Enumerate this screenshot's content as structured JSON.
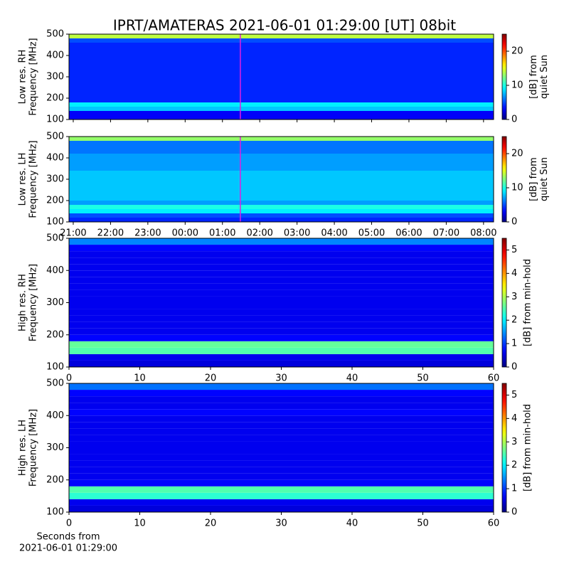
{
  "title": "IPRT/AMATERAS 2021-06-01 01:29:00 [UT]   08bit",
  "chart_data": [
    {
      "type": "heatmap",
      "ylabel": [
        "Low res. RH",
        "Frequency [MHz]"
      ],
      "colormap": "jet",
      "y_edges": [
        100,
        120,
        140,
        160,
        180,
        200,
        220,
        240,
        260,
        280,
        300,
        320,
        340,
        360,
        380,
        400,
        420,
        440,
        460,
        480,
        500
      ],
      "values": [
        3,
        3,
        8,
        9,
        4,
        4,
        4,
        4,
        4,
        4,
        4,
        4,
        4,
        4,
        4,
        4,
        4,
        4,
        5,
        14
      ],
      "ylim": [
        100,
        500
      ],
      "yticks": [
        100,
        200,
        300,
        400,
        500
      ],
      "xlim": [
        20.886,
        32.27
      ],
      "xticks": [
        21,
        22,
        23,
        24,
        25,
        26,
        27,
        28,
        29,
        30,
        31,
        32
      ],
      "xticklabels": false,
      "marker_x": 25.48,
      "marker_color": "#e020e0",
      "clim": [
        0,
        25
      ],
      "cticks": [
        0,
        10,
        20
      ],
      "clabel": [
        "[dB] from",
        "quiet Sun"
      ]
    },
    {
      "type": "heatmap",
      "ylabel": [
        "Low res. LH",
        "Frequency [MHz]"
      ],
      "colormap": "jet",
      "y_edges": [
        100,
        120,
        140,
        160,
        180,
        200,
        220,
        240,
        260,
        280,
        300,
        320,
        340,
        360,
        380,
        400,
        420,
        440,
        460,
        480,
        500
      ],
      "values": [
        4,
        5,
        9,
        10,
        7,
        8,
        8,
        8,
        8,
        8,
        8,
        8,
        7,
        7,
        7,
        7,
        6,
        6,
        6,
        13
      ],
      "ylim": [
        100,
        500
      ],
      "yticks": [
        100,
        200,
        300,
        400,
        500
      ],
      "xlim": [
        20.886,
        32.27
      ],
      "xticks": [
        {
          "value": 21,
          "label": "21:00"
        },
        {
          "value": 22,
          "label": "22:00"
        },
        {
          "value": 23,
          "label": "23:00"
        },
        {
          "value": 24,
          "label": "00:00"
        },
        {
          "value": 25,
          "label": "01:00"
        },
        {
          "value": 26,
          "label": "02:00"
        },
        {
          "value": 27,
          "label": "03:00"
        },
        {
          "value": 28,
          "label": "04:00"
        },
        {
          "value": 29,
          "label": "05:00"
        },
        {
          "value": 30,
          "label": "06:00"
        },
        {
          "value": 31,
          "label": "07:00"
        },
        {
          "value": 32,
          "label": "08:00"
        }
      ],
      "marker_x": 25.48,
      "marker_color": "#e020e0",
      "clim": [
        0,
        25
      ],
      "cticks": [
        0,
        10,
        20
      ],
      "clabel": [
        "[dB] from",
        "quiet Sun"
      ]
    },
    {
      "type": "heatmap",
      "ylabel": [
        "High res. RH",
        "Frequency [MHz]"
      ],
      "colormap": "jet",
      "y_edges": [
        100,
        120,
        140,
        160,
        180,
        200,
        220,
        240,
        260,
        280,
        300,
        320,
        340,
        360,
        380,
        400,
        420,
        440,
        460,
        480,
        500
      ],
      "values": [
        0.5,
        0.6,
        2.5,
        2.6,
        0.7,
        0.6,
        0.6,
        0.6,
        0.6,
        0.6,
        0.6,
        0.6,
        0.6,
        0.6,
        0.6,
        0.6,
        0.6,
        0.6,
        0.7,
        1.4
      ],
      "ylim": [
        100,
        500
      ],
      "yticks": [
        100,
        200,
        300,
        400,
        500
      ],
      "xlim": [
        0,
        60
      ],
      "xticks": [
        0,
        10,
        20,
        30,
        40,
        50,
        60
      ],
      "clim": [
        0,
        5.5
      ],
      "cticks": [
        0,
        1,
        2,
        3,
        4,
        5
      ],
      "clabel": [
        "[dB] from min-hold"
      ]
    },
    {
      "type": "heatmap",
      "ylabel": [
        "High res. LH",
        "Frequency [MHz]"
      ],
      "colormap": "jet",
      "y_edges": [
        100,
        120,
        140,
        160,
        180,
        200,
        220,
        240,
        260,
        280,
        300,
        320,
        340,
        360,
        380,
        400,
        420,
        440,
        460,
        480,
        500
      ],
      "values": [
        0.5,
        0.6,
        2.3,
        2.5,
        0.7,
        0.6,
        0.6,
        0.6,
        0.6,
        0.6,
        0.6,
        0.6,
        0.6,
        0.6,
        0.6,
        0.7,
        0.6,
        0.6,
        0.7,
        1.3
      ],
      "ylim": [
        100,
        500
      ],
      "yticks": [
        100,
        200,
        300,
        400,
        500
      ],
      "xlim": [
        0,
        60
      ],
      "xticks": [
        0,
        10,
        20,
        30,
        40,
        50,
        60
      ],
      "xlabel": [
        "Seconds from",
        "2021-06-01 01:29:00"
      ],
      "clim": [
        0,
        5.5
      ],
      "cticks": [
        0,
        1,
        2,
        3,
        4,
        5
      ],
      "clabel": [
        "[dB] from min-hold"
      ]
    }
  ]
}
